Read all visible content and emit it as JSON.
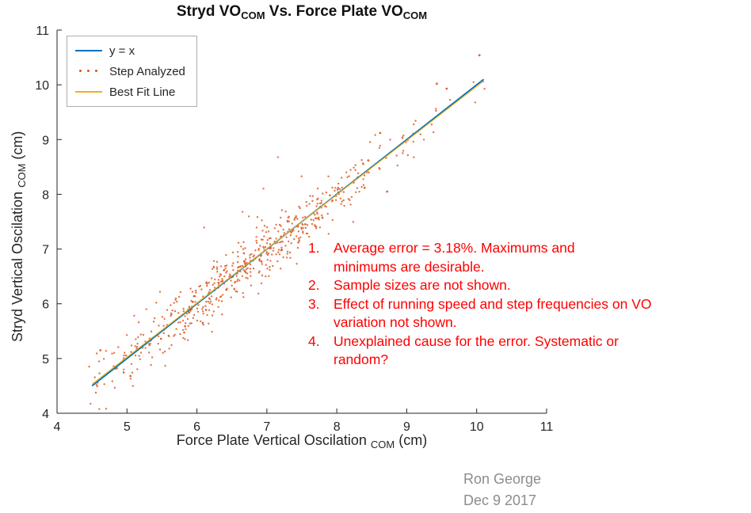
{
  "title": {
    "part1": "Stryd VO",
    "sub1": "COM",
    "part2": " Vs. Force Plate VO",
    "sub2": "COM"
  },
  "axes": {
    "x_label": {
      "main": "Force Plate Vertical Oscilation ",
      "sub": "COM",
      "unit": " (cm)"
    },
    "y_label": {
      "main": "Stryd Vertical Oscilation ",
      "sub": "COM",
      "unit": " (cm)"
    }
  },
  "legend": {
    "items": [
      {
        "label": "y = x",
        "type": "line",
        "color": "#0072BD"
      },
      {
        "label": "Step Analyzed",
        "type": "scatter",
        "color": "#D95319"
      },
      {
        "label": "Best Fit Line",
        "type": "line",
        "color": "#EDB120"
      }
    ]
  },
  "notes": {
    "color": "#ff0000",
    "rows": [
      {
        "num": "1.",
        "text": "Average error = 3.18%. Maximums and"
      },
      {
        "num": "",
        "text": "minimums are desirable."
      },
      {
        "num": "2.",
        "text": "Sample sizes are not shown."
      },
      {
        "num": "3.",
        "text": "Effect of running speed and step frequencies on VO"
      },
      {
        "num": "",
        "text": "variation not shown."
      },
      {
        "num": "4.",
        "text": "Unexplained cause for the error.  Systematic or"
      },
      {
        "num": "",
        "text": "random?"
      }
    ]
  },
  "credit": {
    "name": "Ron George",
    "date": "Dec 9 2017"
  },
  "chart_data": {
    "type": "scatter",
    "title": "Stryd VO_COM Vs. Force Plate VO_COM",
    "xlabel": "Force Plate Vertical Oscilation_COM (cm)",
    "ylabel": "Stryd Vertical Oscilation_COM (cm)",
    "xlim": [
      4,
      11
    ],
    "ylim": [
      4,
      11
    ],
    "xticks": [
      4,
      5,
      6,
      7,
      8,
      9,
      10,
      11
    ],
    "yticks": [
      4,
      5,
      6,
      7,
      8,
      9,
      10,
      11
    ],
    "grid": false,
    "legend_position": "top-left",
    "identity_line": {
      "x": [
        4.5,
        10.1
      ],
      "y": [
        4.5,
        10.1
      ],
      "color": "#0072BD"
    },
    "best_fit_line": {
      "x": [
        4.5,
        10.1
      ],
      "y": [
        4.53,
        10.07
      ],
      "color": "#EDB120"
    },
    "scatter": {
      "n": 620,
      "model": "y = x + noise",
      "x_mean": 6.8,
      "x_std": 1.2,
      "x_min": 4.45,
      "x_max": 10.15,
      "noise_std": 0.22,
      "noise_wide_std": 0.45,
      "wide_frac": 0.1,
      "seed": 7,
      "color": "#D95319",
      "marker": "."
    },
    "extra_points": [
      [
        10.04,
        10.54
      ],
      [
        9.43,
        10.02
      ],
      [
        9.57,
        9.93
      ],
      [
        8.62,
        9.12
      ],
      [
        8.45,
        8.62
      ],
      [
        4.62,
        5.15
      ],
      [
        5.05,
        4.68
      ],
      [
        8.72,
        8.05
      ]
    ],
    "annotations": [
      "Average error = 3.18%. Maximums and minimums are desirable.",
      "Sample sizes are not shown.",
      "Effect of running speed and step frequencies on VO variation not shown.",
      "Unexplained cause for the error.  Systematic or random?"
    ],
    "credit": "Ron George, Dec 9 2017"
  }
}
